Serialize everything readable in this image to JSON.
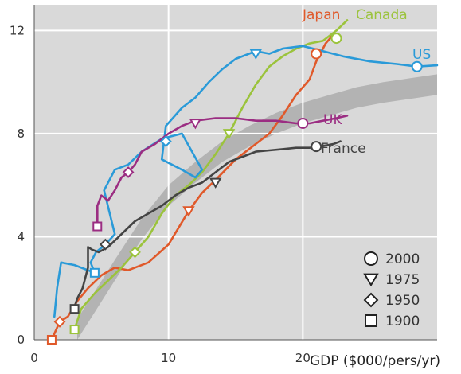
{
  "chart_data": {
    "type": "line",
    "title": "",
    "xlabel": "GDP ($000/pers/yr)",
    "ylabel": "",
    "xlim": [
      0,
      30
    ],
    "ylim": [
      0,
      13
    ],
    "x_ticks": [
      {
        "value": 0,
        "label": "0"
      },
      {
        "value": 10,
        "label": "10"
      },
      {
        "value": 20,
        "label": "20"
      }
    ],
    "y_ticks": [
      {
        "value": 0,
        "label": "0"
      },
      {
        "value": 4,
        "label": "4"
      },
      {
        "value": 8,
        "label": "8"
      },
      {
        "value": 12,
        "label": "12"
      }
    ],
    "grid": true,
    "background_color": "#d9d9d9",
    "band": {
      "color": "#b3b3b3",
      "x": [
        3.2,
        6,
        8,
        10,
        12,
        14,
        16,
        18,
        20,
        22,
        24,
        26,
        28,
        30
      ],
      "center": [
        0.4,
        2.7,
        4.3,
        5.6,
        6.5,
        7.3,
        7.9,
        8.4,
        8.8,
        9.1,
        9.4,
        9.6,
        9.75,
        9.9
      ],
      "half_width": 0.4
    },
    "series": [
      {
        "name": "Japan",
        "color": "#e0592a",
        "x": [
          1.3,
          1.9,
          2.5,
          3.2,
          4.0,
          5.0,
          6.0,
          7.0,
          8.5,
          10.0,
          11.5,
          12.5,
          13.5,
          15.0,
          16.5,
          17.5,
          18.5,
          19.5,
          20.5,
          21.0,
          21.3,
          21.7,
          22.2
        ],
        "y": [
          0.0,
          0.7,
          0.9,
          1.5,
          2.0,
          2.5,
          2.8,
          2.7,
          3.0,
          3.7,
          5.0,
          5.7,
          6.2,
          7.0,
          7.6,
          8.0,
          8.7,
          9.5,
          10.1,
          10.8,
          11.1,
          11.5,
          11.8
        ]
      },
      {
        "name": "Canada",
        "color": "#9bc33c",
        "x": [
          3.0,
          3.5,
          4.5,
          5.5,
          6.5,
          7.5,
          8.5,
          9.5,
          10.5,
          11.5,
          12.5,
          13.5,
          14.5,
          15.5,
          16.5,
          17.5,
          18.5,
          19.5,
          20.5,
          21.5,
          22.5,
          23.3
        ],
        "y": [
          0.4,
          1.2,
          1.8,
          2.3,
          2.8,
          3.4,
          4.0,
          4.9,
          5.6,
          6.0,
          6.5,
          7.2,
          8.0,
          9.0,
          9.9,
          10.6,
          11.0,
          11.3,
          11.5,
          11.6,
          12.0,
          12.4
        ]
      },
      {
        "name": "US",
        "color": "#2a9ad8",
        "x": [
          1.5,
          1.7,
          2.0,
          3.0,
          4.0,
          4.5,
          4.2,
          4.6,
          5.3,
          6.0,
          5.2,
          6.0,
          7.0,
          8.0,
          9.5,
          11.0,
          12.5,
          12.0,
          11.0,
          9.5,
          9.8,
          11.0,
          12.0,
          13.0,
          14.0,
          15.0,
          16.0,
          16.5,
          17.5,
          18.5,
          20.0,
          21.5,
          23.0,
          25.0,
          27.0,
          28.5,
          30.0
        ],
        "y": [
          0.9,
          2.0,
          3.0,
          2.9,
          2.7,
          2.6,
          3.0,
          3.4,
          3.7,
          4.1,
          5.8,
          6.6,
          6.8,
          7.3,
          7.8,
          8.0,
          6.6,
          6.3,
          6.6,
          7.0,
          8.3,
          9.0,
          9.4,
          10.0,
          10.5,
          10.9,
          11.1,
          11.2,
          11.1,
          11.3,
          11.4,
          11.2,
          11.0,
          10.8,
          10.7,
          10.6,
          10.65
        ]
      },
      {
        "name": "UK",
        "color": "#9b2d82",
        "x": [
          4.7,
          4.7,
          5.0,
          5.5,
          6.0,
          6.5,
          7.0,
          7.5,
          8.0,
          9.0,
          10.0,
          11.0,
          12.0,
          13.5,
          15.0,
          16.5,
          18.0,
          19.5,
          20.5,
          21.5,
          22.5,
          23.3
        ],
        "y": [
          4.4,
          5.2,
          5.6,
          5.4,
          5.8,
          6.3,
          6.5,
          6.8,
          7.3,
          7.6,
          8.0,
          8.3,
          8.5,
          8.6,
          8.6,
          8.5,
          8.5,
          8.4,
          8.4,
          8.5,
          8.6,
          8.7
        ]
      },
      {
        "name": "France",
        "color": "#444444",
        "x": [
          2.9,
          3.2,
          3.6,
          4.0,
          4.0,
          4.3,
          4.8,
          5.5,
          6.5,
          7.5,
          8.5,
          9.5,
          10.5,
          11.5,
          12.5,
          13.5,
          14.5,
          15.5,
          16.5,
          17.5,
          18.5,
          19.5,
          20.5,
          21.2,
          21.8,
          22.3,
          22.8
        ],
        "y": [
          1.1,
          1.6,
          2.0,
          2.8,
          3.6,
          3.5,
          3.4,
          3.6,
          4.1,
          4.6,
          4.9,
          5.2,
          5.6,
          5.9,
          6.1,
          6.5,
          6.9,
          7.1,
          7.3,
          7.35,
          7.4,
          7.45,
          7.45,
          7.5,
          7.55,
          7.6,
          7.7
        ]
      }
    ],
    "markers": [
      {
        "series": "Japan",
        "year": 1900,
        "shape": "square",
        "x": 1.3,
        "y": 0.0
      },
      {
        "series": "Japan",
        "year": 1950,
        "shape": "diamond",
        "x": 1.9,
        "y": 0.7
      },
      {
        "series": "Japan",
        "year": 1975,
        "shape": "triangle",
        "x": 11.5,
        "y": 5.0
      },
      {
        "series": "Japan",
        "year": 2000,
        "shape": "circle",
        "x": 21.0,
        "y": 11.1
      },
      {
        "series": "Canada",
        "year": 1900,
        "shape": "square",
        "x": 3.0,
        "y": 0.4
      },
      {
        "series": "Canada",
        "year": 1950,
        "shape": "diamond",
        "x": 7.5,
        "y": 3.4
      },
      {
        "series": "Canada",
        "year": 1975,
        "shape": "triangle",
        "x": 14.5,
        "y": 8.0
      },
      {
        "series": "Canada",
        "year": 2000,
        "shape": "circle",
        "x": 22.5,
        "y": 11.7
      },
      {
        "series": "US",
        "year": 1900,
        "shape": "square",
        "x": 4.5,
        "y": 2.6
      },
      {
        "series": "US",
        "year": 1950,
        "shape": "diamond",
        "x": 9.8,
        "y": 7.7
      },
      {
        "series": "US",
        "year": 1975,
        "shape": "triangle",
        "x": 16.5,
        "y": 11.1
      },
      {
        "series": "US",
        "year": 2000,
        "shape": "circle",
        "x": 28.5,
        "y": 10.6
      },
      {
        "series": "UK",
        "year": 1900,
        "shape": "square",
        "x": 4.7,
        "y": 4.4
      },
      {
        "series": "UK",
        "year": 1950,
        "shape": "diamond",
        "x": 7.0,
        "y": 6.5
      },
      {
        "series": "UK",
        "year": 1975,
        "shape": "triangle",
        "x": 12.0,
        "y": 8.4
      },
      {
        "series": "UK",
        "year": 2000,
        "shape": "circle",
        "x": 20.0,
        "y": 8.4
      },
      {
        "series": "France",
        "year": 1900,
        "shape": "square",
        "x": 3.0,
        "y": 1.2
      },
      {
        "series": "France",
        "year": 1950,
        "shape": "diamond",
        "x": 5.3,
        "y": 3.7
      },
      {
        "series": "France",
        "year": 1975,
        "shape": "triangle",
        "x": 13.5,
        "y": 6.1
      },
      {
        "series": "France",
        "year": 2000,
        "shape": "circle",
        "x": 21.0,
        "y": 7.5
      }
    ],
    "legend": {
      "placement": "bottom-right",
      "entries": [
        {
          "shape": "circle",
          "label": "2000"
        },
        {
          "shape": "triangle",
          "label": "1975"
        },
        {
          "shape": "diamond",
          "label": "1950"
        },
        {
          "shape": "square",
          "label": "1900"
        }
      ]
    }
  }
}
